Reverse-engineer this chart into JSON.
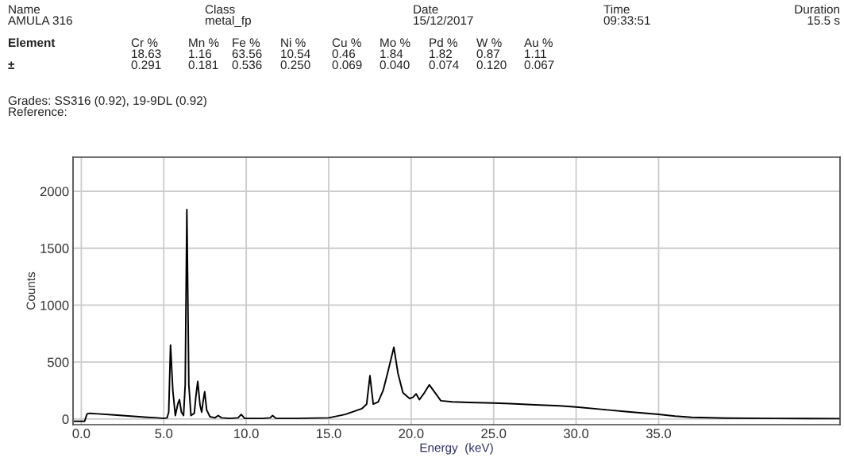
{
  "chart_data": {
    "type": "line",
    "xlabel": "Energy  (keV)",
    "ylabel": "Counts",
    "annotations": [
      "Name",
      "AMULA 316",
      "Class",
      "metal_fp",
      "Date",
      "15/12/2017",
      "Time",
      "09:33:51",
      "Duration",
      "15.5 s",
      "Element",
      "Cr %",
      "Mn %",
      "Fe %",
      "Ni %",
      "Cu %",
      "Mo %",
      "Pd %",
      "W %",
      "Au %",
      "18.63",
      "1.16",
      "63.56",
      "10.54",
      "0.46",
      "1.84",
      "1.82",
      "0.87",
      "1.11",
      "±",
      "0.291",
      "0.181",
      "0.536",
      "0.250",
      "0.069",
      "0.040",
      "0.074",
      "0.120",
      "0.067",
      "Grades: SS316 (0.92), 19-9DL (0.92)",
      "Reference:"
    ],
    "x": [
      -0.4,
      0.2,
      0.35,
      0.5,
      1.0,
      2.0,
      3.0,
      4.0,
      4.6,
      5.0,
      5.2,
      5.3,
      5.41,
      5.55,
      5.7,
      5.85,
      5.95,
      6.07,
      6.2,
      6.3,
      6.4,
      6.52,
      6.65,
      6.85,
      6.95,
      7.06,
      7.2,
      7.3,
      7.38,
      7.48,
      7.6,
      7.8,
      8.1,
      8.3,
      8.5,
      9.0,
      9.5,
      9.7,
      9.9,
      11.0,
      11.45,
      11.6,
      11.8,
      13.0,
      15.0,
      16.0,
      17.0,
      17.3,
      17.5,
      17.7,
      18.0,
      18.3,
      18.6,
      18.95,
      19.2,
      19.5,
      19.9,
      20.1,
      20.3,
      20.5,
      20.8,
      21.1,
      21.4,
      21.8,
      22.5,
      23.5,
      25.0,
      26.0,
      27.5,
      29.0,
      30.0,
      31.5,
      33.0,
      35.0,
      36.0,
      37.0,
      39.0,
      42.0,
      46.0
    ],
    "series": [
      {
        "color": "#000000",
        "values": [
          -20,
          -20,
          45,
          50,
          45,
          35,
          25,
          15,
          10,
          5,
          10,
          60,
          650,
          250,
          30,
          130,
          170,
          60,
          30,
          300,
          1840,
          300,
          30,
          50,
          200,
          330,
          120,
          60,
          150,
          240,
          80,
          20,
          10,
          30,
          10,
          5,
          10,
          40,
          5,
          5,
          10,
          30,
          5,
          5,
          10,
          40,
          90,
          130,
          380,
          130,
          150,
          250,
          420,
          630,
          400,
          230,
          180,
          190,
          220,
          170,
          230,
          300,
          240,
          160,
          150,
          145,
          140,
          135,
          125,
          115,
          105,
          85,
          65,
          40,
          25,
          15,
          8,
          5,
          3
        ]
      }
    ],
    "xlim": [
      -0.5,
      46
    ],
    "ylim": [
      -50,
      2300
    ],
    "xticks": [
      {
        "value": 0,
        "label": "0.0"
      },
      {
        "value": 5,
        "label": "5.0"
      },
      {
        "value": 10,
        "label": "10.0"
      },
      {
        "value": 15,
        "label": "15.0"
      },
      {
        "value": 20,
        "label": "20.0"
      },
      {
        "value": 25,
        "label": "25.0"
      },
      {
        "value": 30,
        "label": "30.0"
      },
      {
        "value": 35,
        "label": "35.0"
      }
    ],
    "yticks": [
      0,
      500,
      1000,
      1500,
      2000
    ],
    "grid": true,
    "line_style": "solid"
  }
}
